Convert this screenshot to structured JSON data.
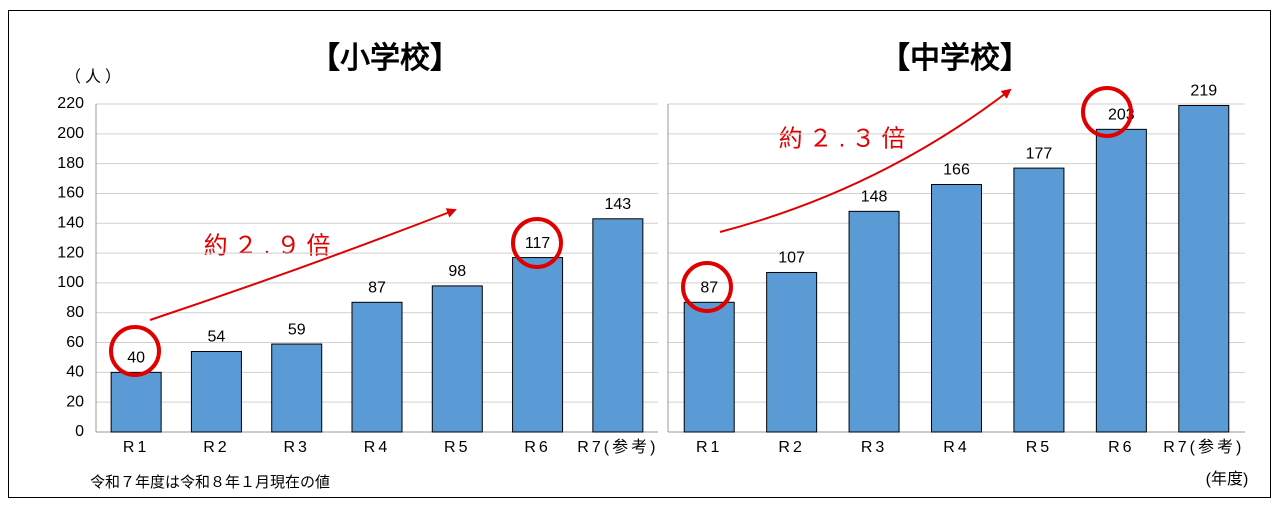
{
  "chart_data": [
    {
      "type": "bar",
      "title": "【小学校】",
      "y_label": "（人）",
      "annotation": "約２.９倍",
      "categories": [
        "R1",
        "R2",
        "R3",
        "R4",
        "R5",
        "R6",
        "R7(参考)"
      ],
      "values": [
        40,
        54,
        59,
        87,
        98,
        117,
        143
      ],
      "color": "#5b9bd5",
      "ylim": [
        0,
        220
      ],
      "yticks": [
        0,
        20,
        40,
        60,
        80,
        100,
        120,
        140,
        160,
        180,
        200,
        220
      ],
      "grid": true
    },
    {
      "type": "bar",
      "title": "【中学校】",
      "x_label": "(年度)",
      "annotation": "約２.３倍",
      "categories": [
        "R1",
        "R2",
        "R3",
        "R4",
        "R5",
        "R6",
        "R7(参考)"
      ],
      "values": [
        87,
        107,
        148,
        166,
        177,
        203,
        219
      ],
      "color": "#5b9bd5",
      "ylim": [
        0,
        220
      ],
      "yticks": [
        0,
        20,
        40,
        60,
        80,
        100,
        120,
        140,
        160,
        180,
        200,
        220
      ],
      "grid": true
    }
  ],
  "note": "令和７年度は令和８年１月現在の値"
}
